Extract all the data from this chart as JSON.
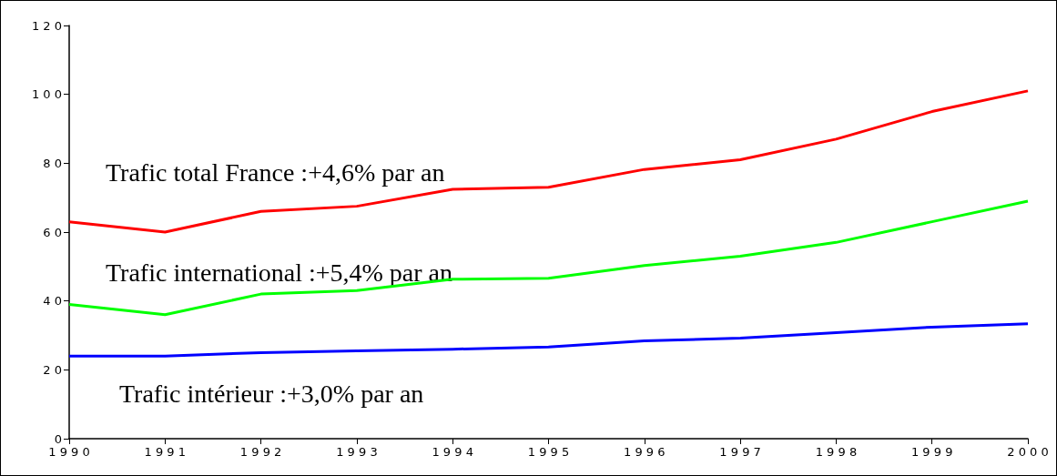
{
  "chart_data": {
    "type": "line",
    "x": [
      1990,
      1991,
      1992,
      1993,
      1994,
      1995,
      1996,
      1997,
      1998,
      1999,
      2000
    ],
    "series": [
      {
        "color": "#ff0000",
        "values": [
          63,
          60,
          66,
          67.5,
          72.4,
          73,
          78.2,
          81,
          87,
          95,
          101
        ]
      },
      {
        "color": "#00ff00",
        "values": [
          39,
          36,
          42,
          43,
          46.3,
          46.6,
          50.3,
          53,
          57,
          63,
          69
        ]
      },
      {
        "color": "#0000ff",
        "values": [
          24,
          24,
          25,
          25.5,
          26,
          26.6,
          28.4,
          29.2,
          30.8,
          32.4,
          33.4
        ]
      }
    ],
    "xlim": [
      1990,
      2000
    ],
    "xticks": [
      1990,
      1991,
      1992,
      1993,
      1994,
      1995,
      1996,
      1997,
      1998,
      1999,
      2000
    ],
    "ylim": [
      0,
      120
    ],
    "yticks": [
      0,
      20,
      40,
      60,
      80,
      100,
      120
    ],
    "grid": false,
    "marker": "none",
    "line_style": "solid",
    "annotations": [
      "Trafic total France :+4,6% par an",
      "Trafic international :+5,4% par an",
      "Trafic intérieur :+3,0% par an"
    ]
  }
}
